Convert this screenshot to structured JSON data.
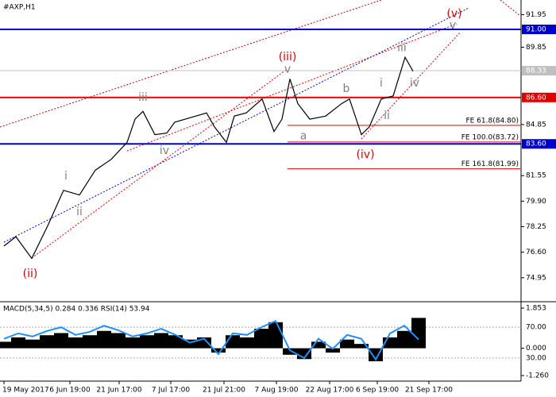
{
  "chart_data": [
    {
      "type": "line",
      "title": "#AXP,H1",
      "color": "#000000",
      "x": [
        5,
        20,
        40,
        60,
        80,
        100,
        120,
        140,
        160,
        170,
        180,
        195,
        210,
        220,
        240,
        260,
        270,
        285,
        295,
        310,
        330,
        345,
        355,
        365,
        375,
        390,
        410,
        430,
        440,
        455,
        465,
        480,
        495,
        510,
        520
      ],
      "values": [
        77.0,
        77.6,
        76.2,
        78.3,
        80.6,
        80.3,
        81.9,
        82.6,
        83.7,
        85.2,
        85.7,
        84.2,
        84.3,
        85.0,
        85.3,
        85.6,
        84.7,
        83.7,
        85.4,
        85.6,
        86.5,
        84.4,
        85.2,
        87.8,
        86.2,
        85.2,
        85.4,
        86.2,
        86.5,
        84.2,
        84.7,
        86.5,
        86.7,
        89.2,
        88.3
      ],
      "xlim": [
        0,
        655
      ],
      "ylim": [
        73.4,
        92.9
      ],
      "xticks": [
        {
          "value": 5,
          "label": "19 May 2017"
        },
        {
          "value": 88,
          "label": "6 Jun 19:00"
        },
        {
          "value": 150,
          "label": "21 Jun 17:00"
        },
        {
          "value": 215,
          "label": "7 Jul 17:00"
        },
        {
          "value": 282,
          "label": "21 Jul 21:00"
        },
        {
          "value": 348,
          "label": "7 Aug 19:00"
        },
        {
          "value": 415,
          "label": "22 Aug 17:00"
        },
        {
          "value": 475,
          "label": "6 Sep 19:00"
        },
        {
          "value": 540,
          "label": "21 Sep 17:00"
        }
      ],
      "yticks": [
        91.95,
        89.85,
        84.85,
        81.55,
        {
          "value": 79.9,
          "label": "79.90"
        },
        78.25,
        {
          "value": 76.6,
          "label": "76.60"
        },
        74.95
      ],
      "levels": [
        {
          "value": 91.0,
          "label": "91.00",
          "color": "#0000cc"
        },
        {
          "value": 86.6,
          "label": "86.60",
          "color": "#e00000"
        },
        {
          "value": 83.6,
          "label": "83.60",
          "color": "#0000cc"
        },
        {
          "value": 88.33,
          "label": "88.33",
          "color": "#c0c0c0"
        }
      ],
      "fe_levels": [
        {
          "value": 84.8,
          "label": "FE 61.8(84.80)"
        },
        {
          "value": 83.72,
          "label": "FE 100.0(83.72)"
        },
        {
          "value": 81.99,
          "label": "FE 161.8(81.99)"
        }
      ],
      "waves": [
        {
          "text": "(v)",
          "x": 572,
          "y": 92.0,
          "color": "#e00000"
        },
        {
          "text": "v",
          "x": 570,
          "y": 91.25,
          "color": "#808080"
        },
        {
          "text": "(iii)",
          "x": 362,
          "y": 89.2,
          "color": "#e00000"
        },
        {
          "text": "v",
          "x": 362,
          "y": 88.4,
          "color": "#808080"
        },
        {
          "text": "iii",
          "x": 180,
          "y": 86.6,
          "color": "#808080"
        },
        {
          "text": "iv",
          "x": 207,
          "y": 83.15,
          "color": "#808080"
        },
        {
          "text": "i",
          "x": 83,
          "y": 81.5,
          "color": "#808080"
        },
        {
          "text": "ii",
          "x": 100,
          "y": 79.2,
          "color": "#808080"
        },
        {
          "text": "(ii)",
          "x": 38,
          "y": 75.2,
          "color": "#e00000"
        },
        {
          "text": "a",
          "x": 382,
          "y": 84.1,
          "color": "#808080"
        },
        {
          "text": "b",
          "x": 436,
          "y": 87.15,
          "color": "#808080"
        },
        {
          "text": "(iv)",
          "x": 460,
          "y": 82.9,
          "color": "#e00000"
        },
        {
          "text": "i",
          "x": 480,
          "y": 87.5,
          "color": "#808080"
        },
        {
          "text": "ii",
          "x": 487,
          "y": 85.4,
          "color": "#808080"
        },
        {
          "text": "iii",
          "x": 506,
          "y": 89.8,
          "color": "#808080"
        },
        {
          "text": "iv",
          "x": 522,
          "y": 87.5,
          "color": "#808080"
        }
      ]
    },
    {
      "type": "indicator",
      "title": "MACD(5,34,5) 0.284 0.336 RSI(14) 53.94",
      "x": [
        5,
        23,
        41,
        59,
        77,
        95,
        113,
        131,
        149,
        167,
        185,
        203,
        221,
        239,
        257,
        275,
        293,
        311,
        329,
        347,
        365,
        383,
        401,
        419,
        437,
        455,
        473,
        491,
        509,
        527
      ],
      "xlim": [
        0,
        655
      ],
      "ylim": [
        -1.26,
        1.853
      ],
      "yticks": [
        1.853,
        {
          "value": 0,
          "label": "0.000"
        },
        {
          "value": -1.26,
          "label": "-1.260"
        }
      ],
      "y2lim": [
        0,
        100
      ],
      "y2ticks": [
        {
          "value": 70,
          "label": "70.00"
        },
        {
          "value": 30,
          "label": "30.00"
        }
      ],
      "series": [
        {
          "name": "MACD",
          "color": "#000000",
          "values": [
            0.3,
            0.5,
            0.4,
            0.6,
            0.7,
            0.5,
            0.6,
            0.8,
            0.7,
            0.5,
            0.6,
            0.7,
            0.6,
            0.4,
            0.5,
            -0.2,
            0.6,
            0.5,
            0.9,
            1.2,
            -0.3,
            -0.5,
            0.3,
            -0.2,
            0.4,
            0.2,
            -0.6,
            0.5,
            0.8,
            1.4
          ]
        },
        {
          "name": "RSI",
          "color": "#1e90ff",
          "axis": "y2",
          "values": [
            55,
            62,
            58,
            65,
            70,
            60,
            64,
            72,
            66,
            58,
            62,
            68,
            60,
            50,
            55,
            35,
            62,
            60,
            70,
            78,
            40,
            30,
            55,
            42,
            60,
            55,
            28,
            62,
            72,
            54
          ]
        }
      ]
    }
  ]
}
